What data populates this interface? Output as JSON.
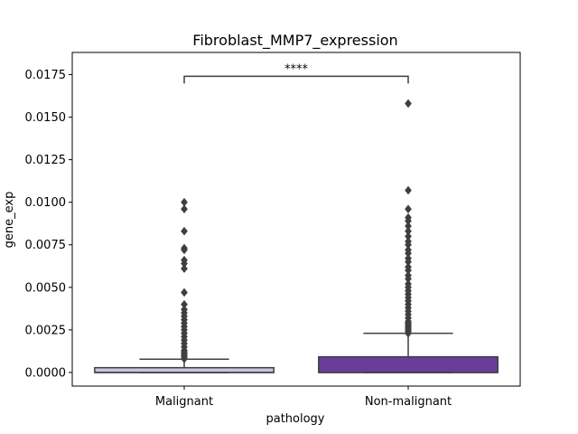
{
  "chart_data": {
    "type": "box",
    "title": "Fibroblast_MMP7_expression",
    "xlabel": "pathology",
    "ylabel": "gene_exp",
    "categories": [
      "Malignant",
      "Non-malignant"
    ],
    "ylim": [
      -0.0008,
      0.0188
    ],
    "yticks": [
      0.0,
      0.0025,
      0.005,
      0.0075,
      0.01,
      0.0125,
      0.015,
      0.0175
    ],
    "ytick_labels": [
      "0.0000",
      "0.0025",
      "0.0050",
      "0.0075",
      "0.0100",
      "0.0125",
      "0.0150",
      "0.0175"
    ],
    "grid": false,
    "boxes": [
      {
        "category": "Malignant",
        "color": "#cbc3df",
        "q1": 0.0,
        "median": 0.0,
        "q3": 0.00028,
        "whisker_low": 0.0,
        "whisker_high": 0.00078,
        "outliers": [
          0.01,
          0.0096,
          0.0083,
          0.0073,
          0.0072,
          0.0066,
          0.0064,
          0.0061,
          0.0047,
          0.004,
          0.0037,
          0.0035,
          0.0033,
          0.0031,
          0.0029,
          0.0027,
          0.0025,
          0.0023,
          0.0021,
          0.0019,
          0.0017,
          0.0015,
          0.0013,
          0.0012,
          0.0011,
          0.001,
          0.0009,
          0.0008
        ]
      },
      {
        "category": "Non-malignant",
        "color": "#6b3d9a",
        "q1": 0.0,
        "median": 0.0,
        "q3": 0.00092,
        "whisker_low": 0.0,
        "whisker_high": 0.0023,
        "outliers": [
          0.0158,
          0.0107,
          0.0096,
          0.0091,
          0.0089,
          0.0086,
          0.0083,
          0.008,
          0.0077,
          0.0075,
          0.0072,
          0.007,
          0.0067,
          0.0065,
          0.0062,
          0.006,
          0.0057,
          0.0055,
          0.0052,
          0.005,
          0.0048,
          0.0046,
          0.0044,
          0.0042,
          0.004,
          0.0038,
          0.0036,
          0.0034,
          0.0032,
          0.003,
          0.0029,
          0.0028,
          0.0027,
          0.0026,
          0.0025,
          0.0024,
          0.0023
        ]
      }
    ],
    "annotations": [
      {
        "text": "****",
        "from": "Malignant",
        "to": "Non-malignant",
        "y": 0.0174
      }
    ]
  }
}
